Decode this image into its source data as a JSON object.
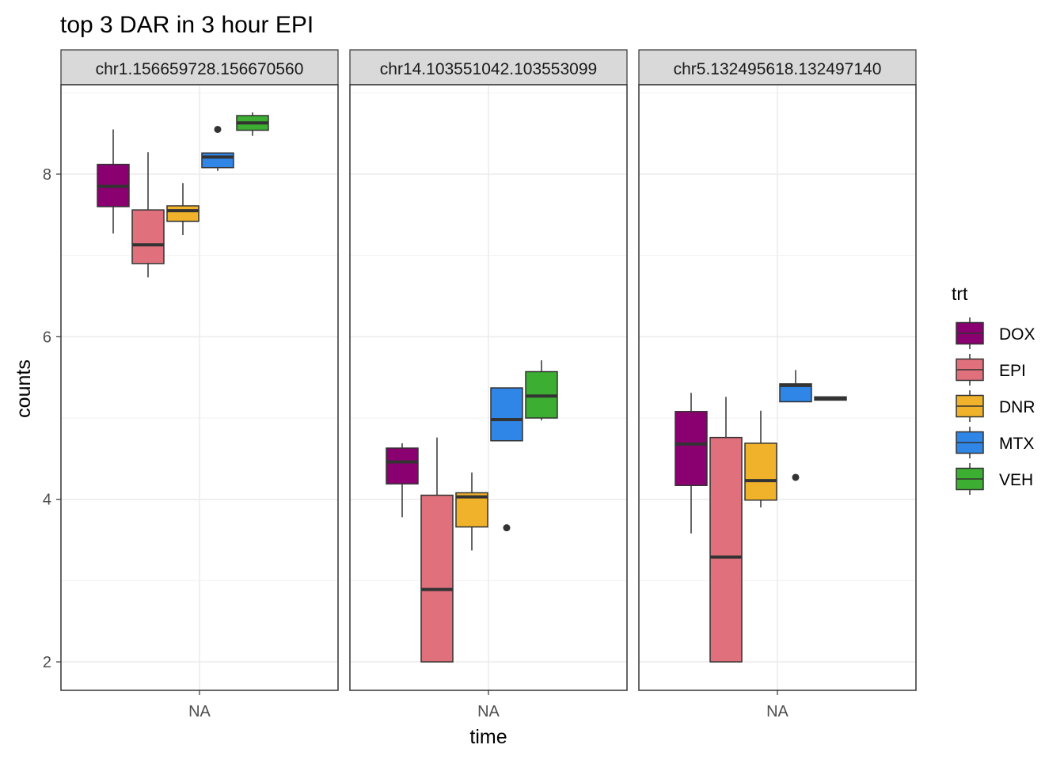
{
  "chart_data": {
    "type": "boxplot",
    "title": "top 3 DAR in 3 hour EPI",
    "xlabel": "time",
    "ylabel": "counts",
    "x_category": "NA",
    "ylim": [
      1.65,
      9.1
    ],
    "y_ticks": [
      2,
      4,
      6,
      8
    ],
    "grid": true,
    "legend": {
      "title": "trt",
      "position": "right",
      "entries": [
        {
          "name": "DOX",
          "color": "#8B0070"
        },
        {
          "name": "EPI",
          "color": "#E0707C"
        },
        {
          "name": "DNR",
          "color": "#F0B22A"
        },
        {
          "name": "MTX",
          "color": "#2F86E6"
        },
        {
          "name": "VEH",
          "color": "#3CAE32"
        }
      ]
    },
    "panels": [
      {
        "label": "chr1.156659728.156670560",
        "boxes": [
          {
            "trt": "DOX",
            "min": 7.27,
            "q1": 7.6,
            "median": 7.85,
            "q3": 8.12,
            "max": 8.55,
            "outliers": []
          },
          {
            "trt": "EPI",
            "min": 6.73,
            "q1": 6.9,
            "median": 7.13,
            "q3": 7.56,
            "max": 8.27,
            "outliers": []
          },
          {
            "trt": "DNR",
            "min": 7.25,
            "q1": 7.42,
            "median": 7.55,
            "q3": 7.61,
            "max": 7.89,
            "outliers": []
          },
          {
            "trt": "MTX",
            "min": 8.04,
            "q1": 8.08,
            "median": 8.21,
            "q3": 8.26,
            "max": 8.26,
            "outliers": [
              8.55
            ]
          },
          {
            "trt": "VEH",
            "min": 8.47,
            "q1": 8.54,
            "median": 8.63,
            "q3": 8.72,
            "max": 8.76,
            "outliers": []
          }
        ]
      },
      {
        "label": "chr14.103551042.103553099",
        "boxes": [
          {
            "trt": "DOX",
            "min": 3.78,
            "q1": 4.19,
            "median": 4.46,
            "q3": 4.63,
            "max": 4.69,
            "outliers": []
          },
          {
            "trt": "EPI",
            "min": 2.0,
            "q1": 2.0,
            "median": 2.89,
            "q3": 4.05,
            "max": 4.76,
            "outliers": []
          },
          {
            "trt": "DNR",
            "min": 3.37,
            "q1": 3.66,
            "median": 4.03,
            "q3": 4.08,
            "max": 4.33,
            "outliers": []
          },
          {
            "trt": "MTX",
            "min": 4.72,
            "q1": 4.72,
            "median": 4.98,
            "q3": 5.37,
            "max": 5.37,
            "outliers": [
              3.65
            ]
          },
          {
            "trt": "VEH",
            "min": 4.97,
            "q1": 5.0,
            "median": 5.27,
            "q3": 5.57,
            "max": 5.71,
            "outliers": []
          }
        ]
      },
      {
        "label": "chr5.132495618.132497140",
        "boxes": [
          {
            "trt": "DOX",
            "min": 3.58,
            "q1": 4.17,
            "median": 4.68,
            "q3": 5.08,
            "max": 5.31,
            "outliers": []
          },
          {
            "trt": "EPI",
            "min": 2.0,
            "q1": 2.0,
            "median": 3.29,
            "q3": 4.76,
            "max": 5.26,
            "outliers": []
          },
          {
            "trt": "DNR",
            "min": 3.9,
            "q1": 3.99,
            "median": 4.23,
            "q3": 4.69,
            "max": 5.09,
            "outliers": []
          },
          {
            "trt": "MTX",
            "min": 5.2,
            "q1": 5.2,
            "median": 5.4,
            "q3": 5.42,
            "max": 5.59,
            "outliers": [
              4.27
            ]
          },
          {
            "trt": "VEH",
            "min": 5.22,
            "q1": 5.22,
            "median": 5.24,
            "q3": 5.26,
            "max": 5.26,
            "outliers": []
          }
        ]
      }
    ]
  }
}
